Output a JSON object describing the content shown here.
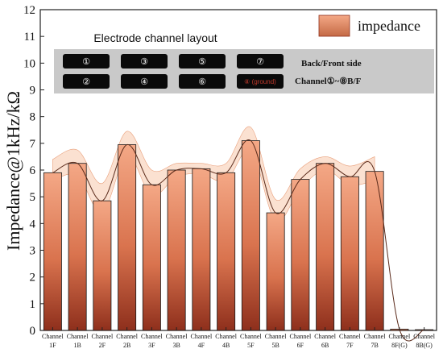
{
  "chart_data": {
    "type": "bar",
    "ylabel": "Impedance@1kHz/kΩ",
    "ylim": [
      0,
      12
    ],
    "yticks": [
      0,
      1,
      2,
      3,
      4,
      5,
      6,
      7,
      8,
      9,
      10,
      11,
      12
    ],
    "categories": [
      {
        "line1": "Channel",
        "line2": "1F"
      },
      {
        "line1": "Channel",
        "line2": "1B"
      },
      {
        "line1": "Channel",
        "line2": "2F"
      },
      {
        "line1": "Channel",
        "line2": "2B"
      },
      {
        "line1": "Channel",
        "line2": "3F"
      },
      {
        "line1": "Channel",
        "line2": "3B"
      },
      {
        "line1": "Channel",
        "line2": "4F"
      },
      {
        "line1": "Channel",
        "line2": "4B"
      },
      {
        "line1": "Channel",
        "line2": "5F"
      },
      {
        "line1": "Channel",
        "line2": "5B"
      },
      {
        "line1": "Channel",
        "line2": "6F"
      },
      {
        "line1": "Channel",
        "line2": "6B"
      },
      {
        "line1": "Channel",
        "line2": "7F"
      },
      {
        "line1": "Channel",
        "line2": "7B"
      },
      {
        "line1": "Channel",
        "line2": "8F(G)"
      },
      {
        "line1": "Channel",
        "line2": "8B(G)"
      }
    ],
    "series": [
      {
        "name": "impedance",
        "values": [
          5.9,
          6.25,
          4.85,
          6.95,
          5.45,
          6.0,
          6.05,
          5.9,
          7.1,
          4.4,
          5.65,
          6.25,
          5.75,
          5.95,
          0.05,
          0.03
        ],
        "band_upper": [
          6.4,
          6.75,
          5.5,
          7.45,
          6.0,
          6.25,
          6.25,
          6.25,
          7.6,
          4.9,
          6.05,
          6.5,
          6.15,
          6.5
        ],
        "band_lower": [
          5.6,
          5.8,
          4.4,
          6.55,
          5.05,
          5.75,
          5.85,
          5.6,
          6.75,
          4.1,
          5.3,
          6.0,
          5.45,
          5.6
        ]
      }
    ],
    "legend": {
      "label": "impedance",
      "position": "top-right"
    },
    "colors": {
      "bar_top": "#f4a886",
      "bar_mid": "#d9734e",
      "bar_bottom": "#8e2f1c",
      "band": "#f7c9ac",
      "curve": "#5a2a1a"
    },
    "inset": {
      "title": "Electrode channel layout",
      "pads_top": [
        "①",
        "③",
        "⑤",
        "⑦"
      ],
      "pads_bottom": [
        "②",
        "④",
        "⑥"
      ],
      "ground_pad": "⑧ (ground)",
      "side_line1": "Back/Front side",
      "side_line2": "Channel①~⑧B/F"
    }
  }
}
